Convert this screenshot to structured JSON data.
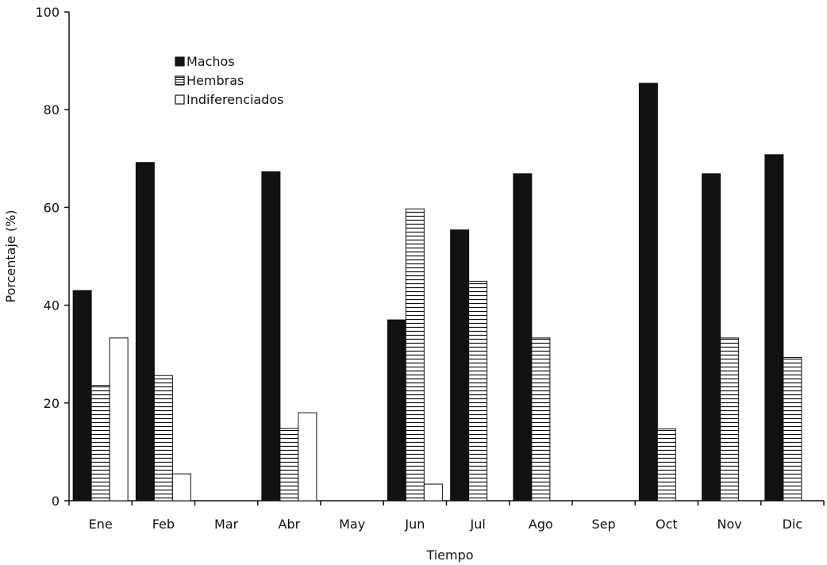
{
  "chart_data": {
    "type": "bar",
    "title": "",
    "xlabel": "Tiempo",
    "ylabel": "Porcentaje (%)",
    "ylim": [
      0,
      100
    ],
    "yticks": [
      0,
      20,
      40,
      60,
      80,
      100
    ],
    "grid": false,
    "legend_placement": "top-left",
    "categories": [
      "Ene",
      "Feb",
      "Mar",
      "Abr",
      "May",
      "Jun",
      "Jul",
      "Ago",
      "Sep",
      "Oct",
      "Nov",
      "Dic"
    ],
    "series": [
      {
        "name": "Machos",
        "pattern": "solid",
        "color": "#111111",
        "values": [
          43,
          69.2,
          0,
          67.3,
          0,
          37,
          55.4,
          66.9,
          0,
          85.4,
          66.9,
          70.8
        ]
      },
      {
        "name": "Hembras",
        "pattern": "horizontal-stripes",
        "color": "#111111",
        "values": [
          23.6,
          25.6,
          0,
          14.8,
          0,
          59.7,
          44.9,
          33.3,
          0,
          14.7,
          33.3,
          29.3
        ]
      },
      {
        "name": "Indiferenciados",
        "pattern": "empty",
        "color": "#111111",
        "values": [
          33.3,
          5.5,
          0,
          18,
          0,
          3.4,
          0,
          0,
          0,
          0,
          0,
          0
        ]
      }
    ]
  }
}
